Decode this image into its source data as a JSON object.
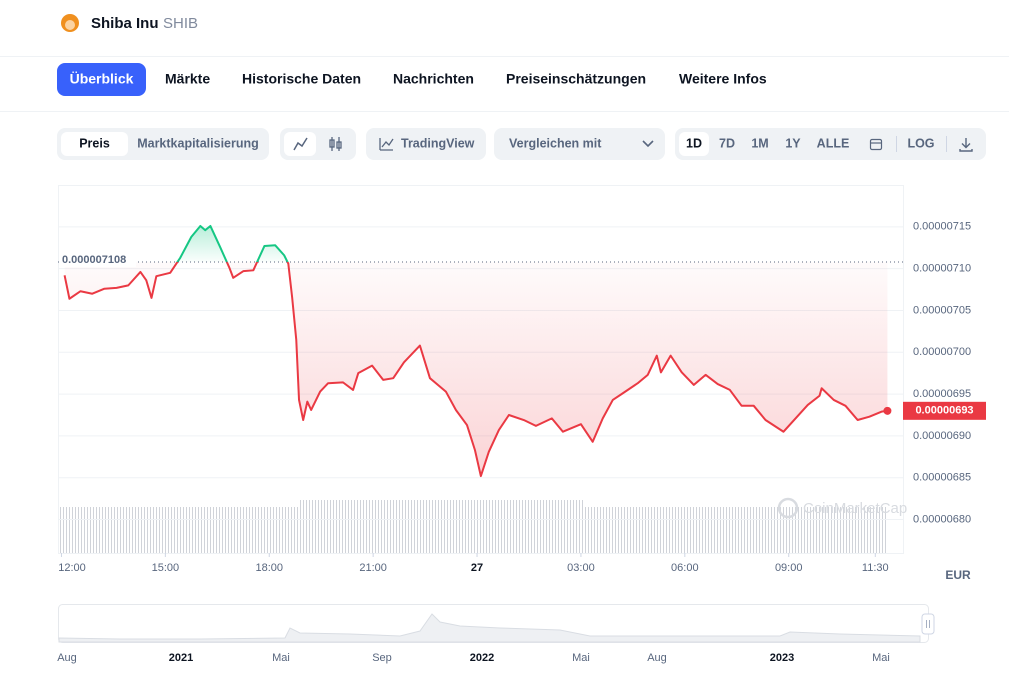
{
  "header": {
    "name": "Shiba Inu",
    "symbol": "SHIB"
  },
  "tabs": [
    "Überblick",
    "Märkte",
    "Historische Daten",
    "Nachrichten",
    "Preiseinschätzungen",
    "Weitere Infos"
  ],
  "toolbar": {
    "mode": [
      "Preis",
      "Marktkapitalisierung"
    ],
    "tradingview": "TradingView",
    "compare": "Vergleichen mit",
    "ranges": [
      "1D",
      "7D",
      "1M",
      "1Y",
      "ALLE"
    ],
    "log": "LOG"
  },
  "chart_data": {
    "type": "line",
    "x": [
      0.09,
      0.23,
      0.55,
      0.89,
      1.24,
      1.59,
      1.93,
      2.28,
      2.45,
      2.6,
      2.74,
      3.14,
      3.43,
      3.75,
      4.01,
      4.15,
      4.3,
      4.59,
      4.85,
      4.96,
      5.25,
      5.54,
      5.86,
      6.17,
      6.43,
      6.55,
      6.66,
      6.78,
      6.86,
      6.98,
      7.1,
      7.21,
      7.47,
      7.7,
      8.13,
      8.42,
      8.57,
      8.97,
      9.29,
      9.58,
      9.89,
      10.35,
      10.64,
      11.1,
      11.39,
      11.71,
      11.94,
      12.11,
      12.34,
      12.63,
      12.92,
      13.35,
      13.7,
      14.16,
      14.48,
      15,
      15.34,
      15.63,
      15.92,
      16.21,
      16.64,
      16.93,
      17.19,
      17.31,
      17.59,
      17.91,
      18.26,
      18.6,
      18.95,
      19.3,
      19.64,
      19.99,
      20.33,
      20.85,
      21.2,
      21.55,
      21.89,
      21.95,
      22.3,
      22.64,
      22.99,
      23.33,
      23.68,
      23.85
    ],
    "values": [
      7.092e-06,
      7.064e-06,
      7.073e-06,
      7.07e-06,
      7.076e-06,
      7.077e-06,
      7.08e-06,
      7.096e-06,
      7.086e-06,
      7.065e-06,
      7.091e-06,
      7.095e-06,
      7.113e-06,
      7.138e-06,
      7.151e-06,
      7.146e-06,
      7.151e-06,
      7.125e-06,
      7.101e-06,
      7.089e-06,
      7.097e-06,
      7.098e-06,
      7.127e-06,
      7.128e-06,
      7.116e-06,
      7.106e-06,
      7.066e-06,
      7.015e-06,
      6.943e-06,
      6.919e-06,
      6.941e-06,
      6.931e-06,
      6.953e-06,
      6.963e-06,
      6.964e-06,
      6.955e-06,
      6.975e-06,
      6.984e-06,
      6.967e-06,
      6.969e-06,
      6.988e-06,
      7.008e-06,
      6.969e-06,
      6.953e-06,
      6.931e-06,
      6.913e-06,
      6.883e-06,
      6.852e-06,
      6.881e-06,
      6.907e-06,
      6.925e-06,
      6.919e-06,
      6.912e-06,
      6.921e-06,
      6.905e-06,
      6.914e-06,
      6.893e-06,
      6.921e-06,
      6.943e-06,
      6.951e-06,
      6.963e-06,
      6.973e-06,
      6.996e-06,
      6.976e-06,
      6.996e-06,
      6.976e-06,
      6.961e-06,
      6.973e-06,
      6.962e-06,
      6.955e-06,
      6.936e-06,
      6.936e-06,
      6.919e-06,
      6.905e-06,
      6.921e-06,
      6.937e-06,
      6.948e-06,
      6.957e-06,
      6.943e-06,
      6.936e-06,
      6.919e-06,
      6.923e-06,
      6.929e-06,
      6.93e-06
    ],
    "color_up": "#16c784",
    "color_down": "#ea3943",
    "reference_value": 7.108e-06,
    "current_value": 6.93e-06,
    "xlim": [
      -0.1,
      24.3
    ],
    "xticks": [
      {
        "value": 0,
        "label": "12:00"
      },
      {
        "value": 3,
        "label": "15:00"
      },
      {
        "value": 6,
        "label": "18:00"
      },
      {
        "value": 9,
        "label": "21:00"
      },
      {
        "value": 12,
        "label": "27",
        "bold": true
      },
      {
        "value": 15,
        "label": "03:00"
      },
      {
        "value": 18,
        "label": "06:00"
      },
      {
        "value": 21,
        "label": "09:00"
      },
      {
        "value": 23.5,
        "label": "11:30"
      }
    ],
    "ylim": [
      6.76e-06,
      7.2e-06
    ],
    "yticks": [
      {
        "value": 6.8e-06,
        "label": "0.00000680"
      },
      {
        "value": 6.85e-06,
        "label": "0.00000685"
      },
      {
        "value": 6.9e-06,
        "label": "0.00000690"
      },
      {
        "value": 6.95e-06,
        "label": "0.00000695"
      },
      {
        "value": 7e-06,
        "label": "0.00000700"
      },
      {
        "value": 7.05e-06,
        "label": "0.00000705"
      },
      {
        "value": 7.1e-06,
        "label": "0.00000710"
      },
      {
        "value": 7.15e-06,
        "label": "0.00000715"
      }
    ],
    "grid": true,
    "currency": "EUR",
    "watermark": "CoinMarketCap"
  },
  "navigator": {
    "labels": [
      {
        "label": "Aug"
      },
      {
        "label": "2021",
        "bold": true
      },
      {
        "label": "Mai"
      },
      {
        "label": "Sep"
      },
      {
        "label": "2022",
        "bold": true
      },
      {
        "label": "Mai"
      },
      {
        "label": "Aug"
      },
      {
        "label": "2023",
        "bold": true
      },
      {
        "label": "Mai"
      }
    ]
  }
}
